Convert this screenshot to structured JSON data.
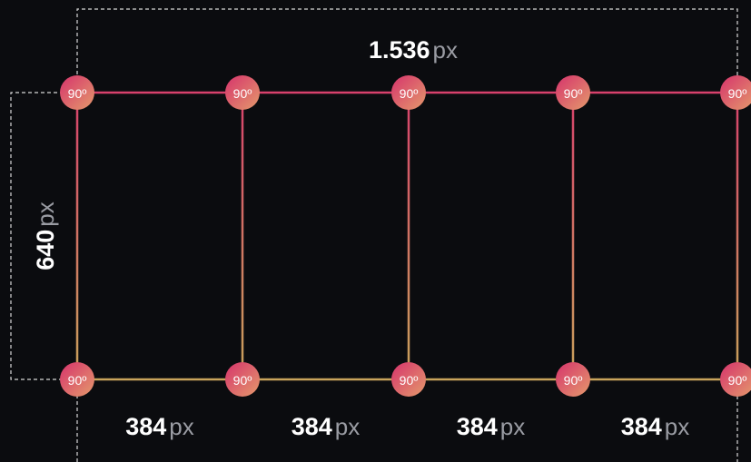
{
  "top_dimension": {
    "value": "1.536",
    "unit": "px"
  },
  "side_dimension": {
    "value": "640",
    "unit": "px"
  },
  "segments": [
    {
      "value": "384",
      "unit": "px"
    },
    {
      "value": "384",
      "unit": "px"
    },
    {
      "value": "384",
      "unit": "px"
    },
    {
      "value": "384",
      "unit": "px"
    }
  ],
  "corners": {
    "top": [
      "90º",
      "90º",
      "90º",
      "90º",
      "90º"
    ],
    "bottom": [
      "90º",
      "90º",
      "90º",
      "90º",
      "90º"
    ]
  }
}
